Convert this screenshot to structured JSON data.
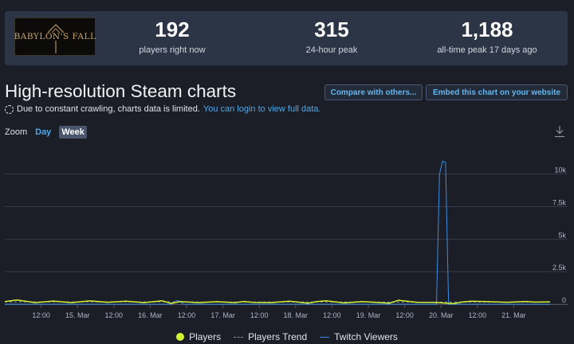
{
  "game": {
    "logo_text": "BABYLON'S FALL"
  },
  "stats": [
    {
      "value": "192",
      "label": "players right now"
    },
    {
      "value": "315",
      "label": "24-hour peak"
    },
    {
      "value": "1,188",
      "label": "all-time peak 17 days ago"
    }
  ],
  "page": {
    "title": "High-resolution Steam charts",
    "compare_label": "Compare with others...",
    "embed_label": "Embed this chart on your website",
    "notice_text": "Due to constant crawling, charts data is limited.",
    "notice_link": "You can login to view full data."
  },
  "zoom": {
    "label": "Zoom",
    "day": "Day",
    "week": "Week",
    "selected": "Week"
  },
  "icons": {
    "download": "download-icon",
    "notice": "dashed-circle-icon"
  },
  "colors": {
    "players": "#d3f234",
    "trend": "#8b93a4",
    "twitch": "#3d8ee0",
    "link": "#4fa8e8"
  },
  "chart_data": {
    "type": "line",
    "x_tick_labels": [
      "12:00",
      "15. Mar",
      "12:00",
      "16. Mar",
      "12:00",
      "17. Mar",
      "12:00",
      "18. Mar",
      "12:00",
      "19. Mar",
      "12:00",
      "20. Mar",
      "12:00",
      "21. Mar"
    ],
    "x_tick_hours": [
      12,
      24,
      36,
      48,
      60,
      72,
      84,
      96,
      108,
      120,
      132,
      144,
      156,
      168
    ],
    "x_range_hours": [
      0,
      180
    ],
    "y_tick_labels": [
      "0",
      "2.5k",
      "5k",
      "7.5k",
      "10k"
    ],
    "y_tick_values": [
      0,
      2500,
      5000,
      7500,
      10000
    ],
    "ylim": [
      0,
      12000
    ],
    "grid": "horizontal",
    "legend_position": "bottom-center",
    "series": [
      {
        "name": "Players",
        "x": [
          0,
          4,
          10,
          16,
          22,
          28,
          34,
          40,
          46,
          52,
          55,
          58,
          64,
          70,
          76,
          79,
          82,
          88,
          94,
          100,
          103,
          106,
          112,
          118,
          124,
          127,
          130,
          136,
          142,
          148,
          151,
          154,
          160,
          166,
          172,
          175,
          180
        ],
        "y": [
          200,
          320,
          120,
          240,
          120,
          250,
          150,
          230,
          120,
          260,
          60,
          200,
          120,
          190,
          120,
          210,
          140,
          120,
          230,
          80,
          200,
          260,
          100,
          200,
          120,
          80,
          300,
          150,
          140,
          40,
          170,
          230,
          190,
          150,
          210,
          160,
          180
        ]
      },
      {
        "name": "Players Trend",
        "x": [
          0,
          30,
          60,
          90,
          120,
          150,
          180
        ],
        "y": [
          180,
          175,
          170,
          170,
          165,
          160,
          165
        ]
      },
      {
        "name": "Twitch Viewers",
        "x": [
          0,
          20,
          40,
          55,
          56.5,
          57.5,
          59,
          80,
          100,
          120,
          140,
          142.5,
          143.5,
          144.5,
          145.5,
          146.5,
          147.5,
          160,
          180
        ],
        "y": [
          0,
          0,
          0,
          0,
          250,
          250,
          0,
          0,
          0,
          0,
          0,
          0,
          10000,
          11000,
          10900,
          0,
          0,
          0,
          0
        ]
      }
    ]
  },
  "legend": {
    "players": "Players",
    "trend": "Players Trend",
    "twitch": "Twitch Viewers"
  }
}
